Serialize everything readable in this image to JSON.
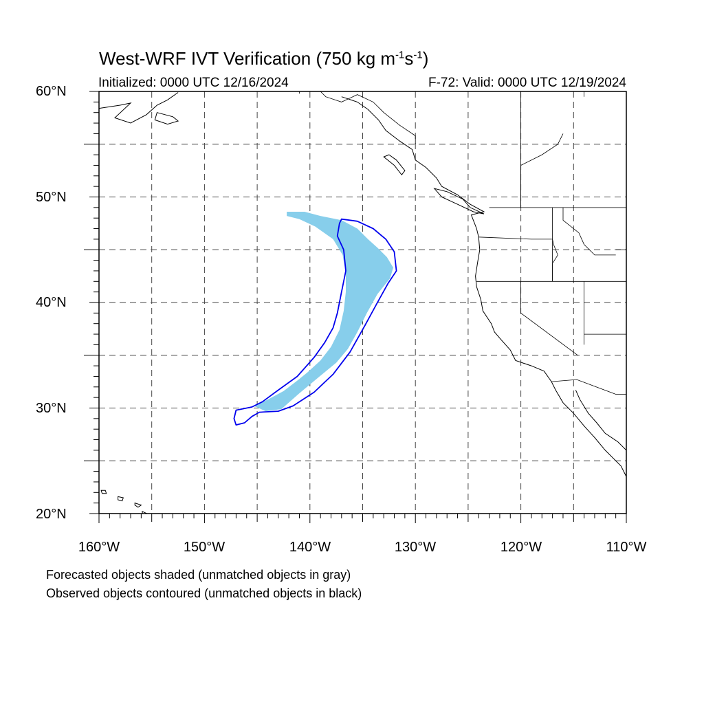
{
  "title": {
    "main": "West-WRF IVT Verification (750 kg m",
    "sup1": "-1",
    "mid": "s",
    "sup2": "-1",
    "end": ")"
  },
  "subtitle_left": "Initialized: 0000 UTC 12/16/2024",
  "subtitle_right": "F-72: Valid: 0000 UTC 12/19/2024",
  "lat_labels": [
    "60°N",
    "50°N",
    "40°N",
    "30°N",
    "20°N"
  ],
  "lon_labels": [
    "160°W",
    "150°W",
    "140°W",
    "130°W",
    "120°W",
    "110°W"
  ],
  "notes": [
    "Forecasted objects shaded (unmatched objects in gray)",
    "Observed objects contoured (unmatched objects in black)"
  ],
  "colors": {
    "forecast_fill": "#87CEEB",
    "observed_contour": "#0000EE",
    "grid": "#444444",
    "coast": "#000000"
  },
  "map_data": {
    "extent": {
      "lon_min": -160,
      "lon_max": -110,
      "lat_min": 20,
      "lat_max": 60
    },
    "gridlines": {
      "lon_step": 5,
      "lat_step": 5,
      "style": "dashed"
    },
    "forecast_object": [
      [
        -142.2,
        48.6
      ],
      [
        -140.5,
        48.6
      ],
      [
        -139.0,
        48.2
      ],
      [
        -137.0,
        47.8
      ],
      [
        -135.5,
        47.0
      ],
      [
        -134.5,
        46.0
      ],
      [
        -133.6,
        45.2
      ],
      [
        -132.7,
        44.3
      ],
      [
        -132.1,
        43.3
      ],
      [
        -132.4,
        42.3
      ],
      [
        -133.6,
        40.8
      ],
      [
        -134.6,
        39.0
      ],
      [
        -135.5,
        37.2
      ],
      [
        -136.4,
        35.6
      ],
      [
        -137.5,
        34.3
      ],
      [
        -139.2,
        32.9
      ],
      [
        -141.0,
        31.4
      ],
      [
        -142.7,
        29.9
      ],
      [
        -144.2,
        29.7
      ],
      [
        -145.3,
        30.2
      ],
      [
        -144.0,
        30.8
      ],
      [
        -142.5,
        31.6
      ],
      [
        -141.2,
        32.6
      ],
      [
        -140.2,
        33.4
      ],
      [
        -139.0,
        34.5
      ],
      [
        -138.0,
        35.8
      ],
      [
        -137.2,
        37.4
      ],
      [
        -136.8,
        39.2
      ],
      [
        -136.6,
        41.0
      ],
      [
        -136.6,
        42.8
      ],
      [
        -136.9,
        44.5
      ],
      [
        -137.8,
        46.0
      ],
      [
        -139.5,
        47.2
      ],
      [
        -141.0,
        47.9
      ],
      [
        -142.2,
        48.2
      ]
    ],
    "observed_object": [
      [
        -137.0,
        47.9
      ],
      [
        -135.5,
        47.7
      ],
      [
        -134.0,
        47.0
      ],
      [
        -132.8,
        46.0
      ],
      [
        -132.0,
        44.8
      ],
      [
        -131.8,
        43.0
      ],
      [
        -132.6,
        41.8
      ],
      [
        -133.6,
        40.0
      ],
      [
        -134.8,
        37.8
      ],
      [
        -136.2,
        35.3
      ],
      [
        -137.8,
        33.2
      ],
      [
        -139.6,
        31.5
      ],
      [
        -141.6,
        30.2
      ],
      [
        -143.0,
        29.7
      ],
      [
        -144.8,
        29.6
      ],
      [
        -145.5,
        29.2
      ],
      [
        -146.2,
        28.6
      ],
      [
        -147.0,
        28.4
      ],
      [
        -147.2,
        29.0
      ],
      [
        -147.0,
        29.8
      ],
      [
        -145.5,
        30.1
      ],
      [
        -144.5,
        30.6
      ],
      [
        -143.0,
        31.7
      ],
      [
        -141.2,
        33.0
      ],
      [
        -139.6,
        34.8
      ],
      [
        -138.6,
        36.2
      ],
      [
        -137.8,
        37.6
      ],
      [
        -137.4,
        39.0
      ],
      [
        -137.0,
        41.0
      ],
      [
        -136.6,
        43.0
      ],
      [
        -136.8,
        45.0
      ],
      [
        -137.4,
        46.3
      ],
      [
        -137.2,
        47.5
      ]
    ],
    "coastline": [
      [
        -137.0,
        59.5
      ],
      [
        -135.5,
        59.0
      ],
      [
        -134.5,
        58.3
      ],
      [
        -133.5,
        57.3
      ],
      [
        -132.8,
        56.3
      ],
      [
        -131.5,
        55.3
      ],
      [
        -130.3,
        54.5
      ],
      [
        -130.0,
        53.5
      ],
      [
        -129.0,
        52.8
      ],
      [
        -128.0,
        51.8
      ],
      [
        -127.5,
        51.0
      ],
      [
        -126.0,
        50.2
      ],
      [
        -124.8,
        49.3
      ],
      [
        -123.5,
        48.6
      ],
      [
        -124.7,
        48.3
      ],
      [
        -124.2,
        47.0
      ],
      [
        -124.0,
        46.2
      ],
      [
        -123.9,
        45.0
      ],
      [
        -124.1,
        43.8
      ],
      [
        -124.3,
        42.5
      ],
      [
        -124.2,
        41.5
      ],
      [
        -123.8,
        40.3
      ],
      [
        -123.6,
        39.2
      ],
      [
        -122.8,
        38.0
      ],
      [
        -122.5,
        37.2
      ],
      [
        -121.9,
        36.5
      ],
      [
        -121.0,
        35.5
      ],
      [
        -120.5,
        34.5
      ],
      [
        -119.0,
        34.0
      ],
      [
        -117.8,
        33.5
      ],
      [
        -117.1,
        32.5
      ],
      [
        -116.7,
        31.7
      ],
      [
        -116.0,
        30.5
      ],
      [
        -115.0,
        29.5
      ],
      [
        -114.0,
        28.3
      ],
      [
        -113.0,
        27.2
      ],
      [
        -112.0,
        26.0
      ],
      [
        -110.5,
        24.5
      ],
      [
        -110.0,
        23.5
      ]
    ],
    "coastline_gulf": [
      [
        -114.8,
        31.7
      ],
      [
        -114.4,
        30.8
      ],
      [
        -113.6,
        29.5
      ],
      [
        -112.8,
        28.6
      ],
      [
        -112.0,
        27.6
      ],
      [
        -110.8,
        26.8
      ],
      [
        -110.0,
        26.0
      ]
    ],
    "coastline_ak": [
      [
        -160.0,
        58.4
      ],
      [
        -158.0,
        58.7
      ],
      [
        -157.0,
        58.9
      ],
      [
        -158.5,
        57.5
      ],
      [
        -157.0,
        57.0
      ],
      [
        -155.5,
        57.8
      ],
      [
        -154.5,
        58.7
      ],
      [
        -153.5,
        59.2
      ],
      [
        -152.5,
        59.9
      ]
    ],
    "vancouver_island": [
      [
        -128.2,
        50.8
      ],
      [
        -127.0,
        50.5
      ],
      [
        -125.5,
        49.8
      ],
      [
        -124.8,
        49.0
      ],
      [
        -123.5,
        48.4
      ],
      [
        -124.5,
        48.6
      ],
      [
        -126.0,
        49.3
      ],
      [
        -127.5,
        50.0
      ],
      [
        -128.2,
        50.8
      ]
    ],
    "haida_gwaii": [
      [
        -132.5,
        54.0
      ],
      [
        -131.8,
        53.5
      ],
      [
        -131.0,
        52.5
      ],
      [
        -131.3,
        52.1
      ],
      [
        -132.0,
        53.0
      ],
      [
        -133.0,
        53.8
      ],
      [
        -132.5,
        54.0
      ]
    ],
    "kodiak": [
      [
        -154.5,
        58.0
      ],
      [
        -153.0,
        57.6
      ],
      [
        -152.5,
        57.2
      ],
      [
        -153.5,
        56.9
      ],
      [
        -154.7,
        57.3
      ],
      [
        -154.5,
        58.0
      ]
    ],
    "hawaii_islands": [
      [
        [
          -159.8,
          22.2
        ],
        [
          -159.4,
          22.2
        ],
        [
          -159.3,
          21.9
        ],
        [
          -159.7,
          21.9
        ],
        [
          -159.8,
          22.2
        ]
      ],
      [
        [
          -158.2,
          21.6
        ],
        [
          -157.7,
          21.5
        ],
        [
          -157.8,
          21.2
        ],
        [
          -158.2,
          21.3
        ],
        [
          -158.2,
          21.6
        ]
      ],
      [
        [
          -156.6,
          21.0
        ],
        [
          -156.0,
          20.8
        ],
        [
          -156.3,
          20.6
        ],
        [
          -156.6,
          20.8
        ],
        [
          -156.6,
          21.0
        ]
      ],
      [
        [
          -155.9,
          20.2
        ],
        [
          -155.0,
          19.8
        ],
        [
          -155.2,
          19.4
        ],
        [
          -155.8,
          19.6
        ],
        [
          -155.9,
          20.2
        ]
      ]
    ],
    "boundaries": [
      [
        [
          -141.0,
          60.0
        ],
        [
          -141.0,
          59.8
        ]
      ],
      [
        [
          -123.0,
          49.0
        ],
        [
          -110.0,
          49.0
        ]
      ],
      [
        [
          -124.0,
          46.2
        ],
        [
          -119.0,
          46.0
        ],
        [
          -117.0,
          46.0
        ],
        [
          -116.9,
          45.5
        ],
        [
          -116.5,
          44.5
        ],
        [
          -117.0,
          43.7
        ],
        [
          -117.0,
          42.0
        ]
      ],
      [
        [
          -124.2,
          42.0
        ],
        [
          -110.0,
          42.0
        ]
      ],
      [
        [
          -120.0,
          42.0
        ],
        [
          -120.0,
          39.0
        ],
        [
          -114.6,
          35.0
        ]
      ],
      [
        [
          -117.0,
          49.0
        ],
        [
          -117.0,
          42.0
        ]
      ],
      [
        [
          -111.0,
          45.0
        ],
        [
          -110.0,
          45.0
        ]
      ],
      [
        [
          -114.0,
          42.0
        ],
        [
          -114.0,
          36.0
        ]
      ],
      [
        [
          -114.0,
          37.0
        ],
        [
          -110.0,
          37.0
        ]
      ],
      [
        [
          -117.1,
          32.5
        ],
        [
          -114.7,
          32.7
        ],
        [
          -111.0,
          31.3
        ],
        [
          -110.0,
          31.3
        ]
      ],
      [
        [
          -116.0,
          49.0
        ],
        [
          -116.0,
          47.8
        ],
        [
          -114.5,
          46.6
        ],
        [
          -114.0,
          45.5
        ],
        [
          -113.0,
          44.5
        ],
        [
          -111.0,
          44.5
        ]
      ],
      [
        [
          -120.0,
          49.0
        ],
        [
          -120.0,
          53.0
        ],
        [
          -118.0,
          54.0
        ],
        [
          -116.5,
          55.0
        ],
        [
          -116.0,
          56.0
        ]
      ],
      [
        [
          -114.0,
          60.0
        ],
        [
          -114.0,
          59.5
        ]
      ],
      [
        [
          -139.0,
          60.0
        ],
        [
          -138.5,
          59.5
        ],
        [
          -137.0,
          59.0
        ],
        [
          -135.5,
          59.7
        ],
        [
          -134.0,
          59.0
        ],
        [
          -133.0,
          58.0
        ],
        [
          -131.5,
          56.8
        ],
        [
          -130.0,
          55.8
        ],
        [
          -130.0,
          55.0
        ]
      ],
      [
        [
          -120.0,
          60.0
        ],
        [
          -120.0,
          49.0
        ]
      ],
      [
        [
          -110.0,
          60.0
        ],
        [
          -110.0,
          49.0
        ]
      ]
    ]
  }
}
